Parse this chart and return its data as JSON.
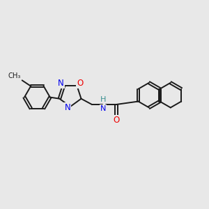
{
  "bg": "#e8e8e8",
  "bond_color": "#1a1a1a",
  "N_color": "#0000ee",
  "O_color": "#ee0000",
  "H_color": "#3a9090",
  "fs": 8.5,
  "lw": 1.4,
  "dbo": 0.06,
  "xlim": [
    0,
    10
  ],
  "ylim": [
    0,
    10
  ]
}
